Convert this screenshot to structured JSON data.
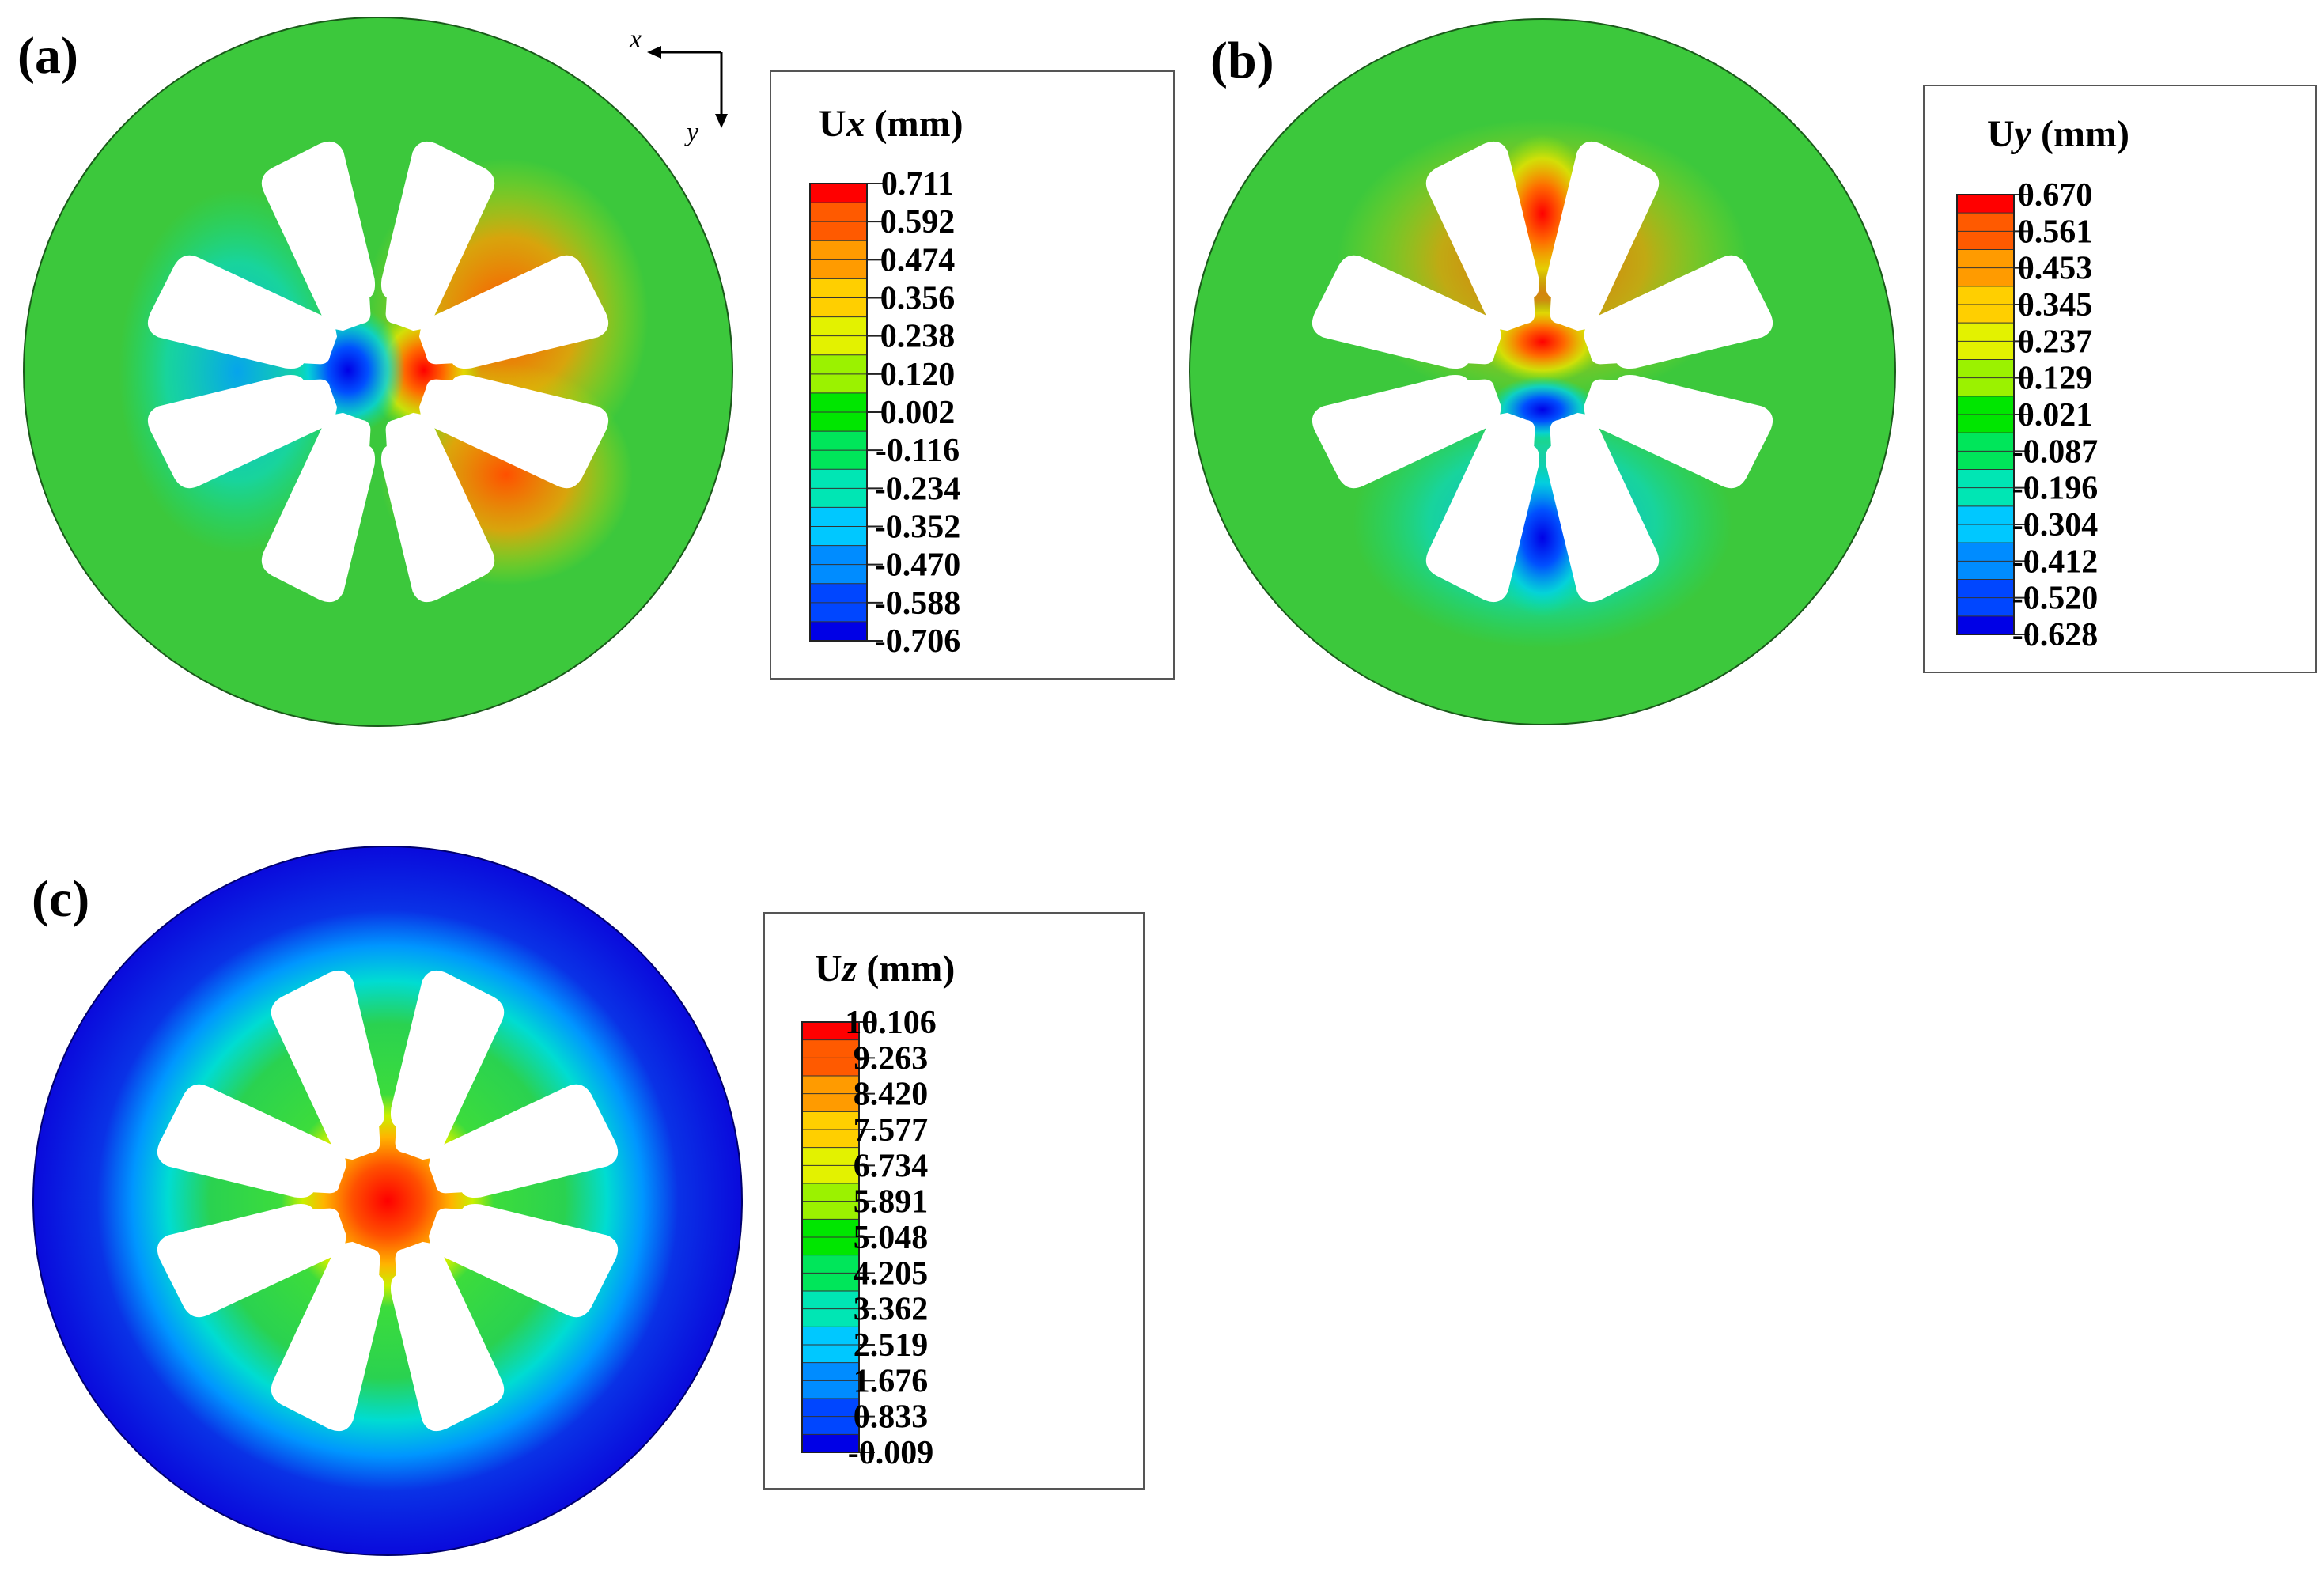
{
  "axes_indicator": {
    "x_label": "x",
    "y_label": "y"
  },
  "panels": [
    {
      "id": "a",
      "label": "(a)",
      "legend_title_prefix": "U",
      "legend_title_var": "x",
      "legend_title_unit": " (mm)",
      "legend_values": [
        "0.711",
        "0.592",
        "0.474",
        "0.356",
        "0.238",
        "0.120",
        "0.002",
        "-0.116",
        "-0.234",
        "-0.352",
        "-0.470",
        "-0.588",
        "-0.706"
      ],
      "has_axes_indicator": true
    },
    {
      "id": "b",
      "label": "(b)",
      "legend_title_prefix": "U",
      "legend_title_var": "y",
      "legend_title_unit": " (mm)",
      "legend_values": [
        "0.670",
        "0.561",
        "0.453",
        "0.345",
        "0.237",
        "0.129",
        "0.021",
        "-0.087",
        "-0.196",
        "-0.304",
        "-0.412",
        "-0.520",
        "-0.628"
      ],
      "has_axes_indicator": false
    },
    {
      "id": "c",
      "label": "(c)",
      "legend_title_prefix": "U",
      "legend_title_var": "z",
      "legend_title_unit": " (mm)",
      "legend_values": [
        "10.106",
        "9.263",
        "8.420",
        "7.577",
        "6.734",
        "5.891",
        "5.048",
        "4.205",
        "3.362",
        "2.519",
        "1.676",
        "0.833",
        "-0.009"
      ],
      "has_axes_indicator": false
    }
  ],
  "colors": {
    "contour_scale": [
      "#ff0000",
      "#ff5a00",
      "#ff9b00",
      "#ffcf00",
      "#e3f200",
      "#9bf200",
      "#00e600",
      "#00e65a",
      "#00e6b4",
      "#00c8ff",
      "#008cff",
      "#0046ff",
      "#0000e6"
    ],
    "disk_green": "#3cc83c",
    "disk_blue": "#0a14dc"
  }
}
